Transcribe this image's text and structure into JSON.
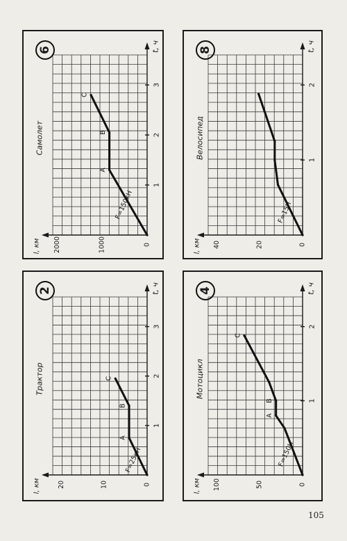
{
  "page_number": "105",
  "chart_data": [
    {
      "type": "line",
      "badge": "2",
      "title": "Трактор",
      "xlabel": "t, ч",
      "ylabel": "l, км",
      "xticks": [
        "1",
        "2",
        "3"
      ],
      "yticks": [
        "0",
        "10",
        "20"
      ],
      "xlim": [
        0,
        3.6
      ],
      "ylim": [
        0,
        22
      ],
      "grid": true,
      "series": [
        {
          "x": [
            0,
            0.75,
            1.4,
            1.95
          ],
          "y": [
            0,
            4.2,
            4.2,
            7.4
          ]
        }
      ],
      "point_labels": [
        {
          "text": "A",
          "x": 0.75,
          "y": 4.2
        },
        {
          "text": "B",
          "x": 1.4,
          "y": 4.2
        },
        {
          "text": "C",
          "x": 1.95,
          "y": 7.4
        }
      ],
      "line_label": {
        "text": "F=25кН",
        "x": 0.3,
        "y": 1.6
      }
    },
    {
      "type": "line",
      "badge": "6",
      "title": "Самолет",
      "xlabel": "t, ч",
      "ylabel": "l, км",
      "xticks": [
        "1",
        "2",
        "3"
      ],
      "yticks": [
        "0",
        "1000",
        "2000"
      ],
      "xlim": [
        0,
        3.6
      ],
      "ylim": [
        0,
        2100
      ],
      "grid": true,
      "series": [
        {
          "x": [
            0,
            1.3,
            2.05,
            2.8
          ],
          "y": [
            0,
            840,
            840,
            1250
          ]
        }
      ],
      "point_labels": [
        {
          "text": "A",
          "x": 1.3,
          "y": 840
        },
        {
          "text": "B",
          "x": 2.05,
          "y": 840
        },
        {
          "text": "C",
          "x": 2.8,
          "y": 1250
        }
      ],
      "line_label": {
        "text": "F=150кН",
        "x": 0.6,
        "y": 360
      }
    },
    {
      "type": "line",
      "badge": "4",
      "title": "Мотоцикл",
      "xlabel": "t, ч",
      "ylabel": "l, км",
      "xticks": [
        "1",
        "2"
      ],
      "yticks": [
        "0",
        "50",
        "100"
      ],
      "xlim": [
        0,
        2.4
      ],
      "ylim": [
        0,
        110
      ],
      "grid": true,
      "series": [
        {
          "x": [
            0,
            0.63,
            0.8,
            1.0,
            1.25,
            1.88
          ],
          "y": [
            0,
            21,
            31,
            31,
            39,
            68
          ]
        }
      ],
      "point_labels": [
        {
          "text": "A",
          "x": 0.8,
          "y": 31
        },
        {
          "text": "B",
          "x": 1.0,
          "y": 31
        },
        {
          "text": "C",
          "x": 1.88,
          "y": 68
        }
      ],
      "line_label": {
        "text": "F=150Н",
        "x": 0.28,
        "y": 11
      }
    },
    {
      "type": "line",
      "badge": "8",
      "title": "Велосипед",
      "xlabel": "t, ч",
      "ylabel": "l, км",
      "xticks": [
        "1",
        "2"
      ],
      "yticks": [
        "0",
        "20",
        "40"
      ],
      "xlim": [
        0,
        2.4
      ],
      "ylim": [
        0,
        44
      ],
      "grid": true,
      "series": [
        {
          "x": [
            0,
            0.67,
            1.0,
            1.25,
            1.88
          ],
          "y": [
            0,
            11.5,
            13,
            13,
            20.5
          ]
        }
      ],
      "point_labels": [],
      "line_label": {
        "text": "F=15Н",
        "x": 0.3,
        "y": 5
      }
    }
  ]
}
